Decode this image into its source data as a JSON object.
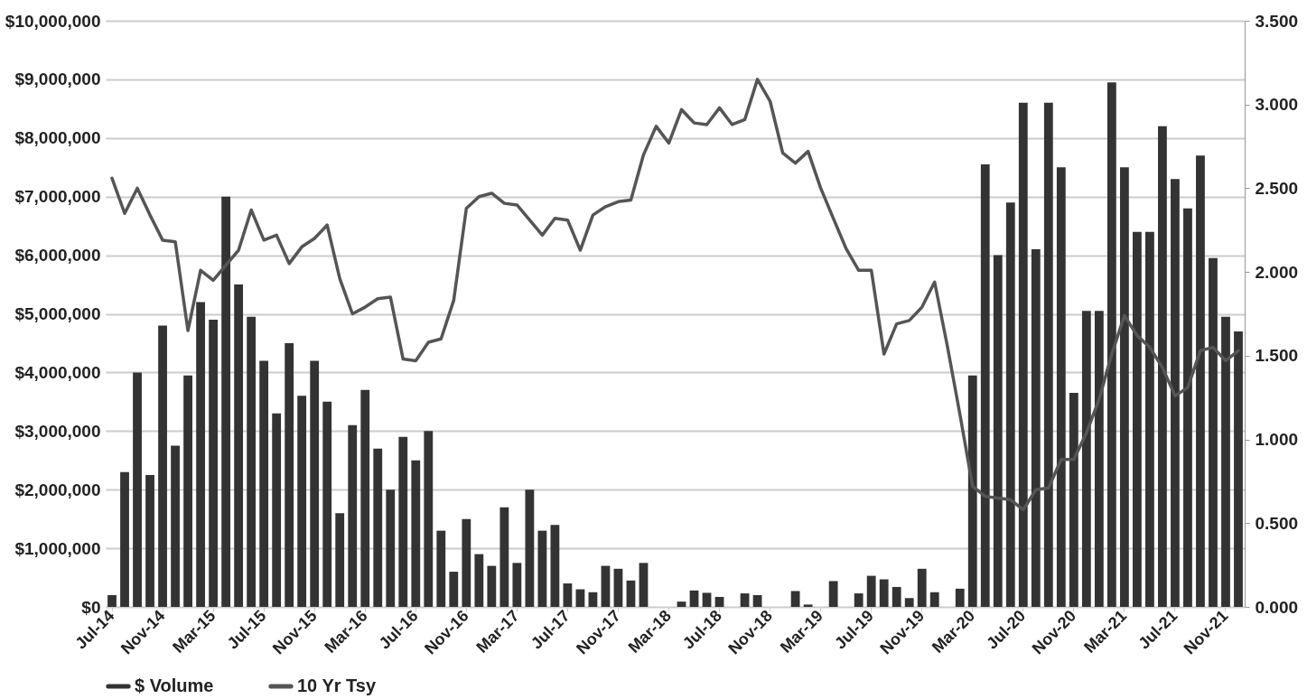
{
  "chart_data": {
    "type": "bar",
    "categories": [
      "Jul-14",
      null,
      null,
      null,
      "Nov-14",
      null,
      null,
      null,
      "Mar-15",
      null,
      null,
      null,
      "Jul-15",
      null,
      null,
      null,
      "Nov-15",
      null,
      null,
      null,
      "Mar-16",
      null,
      null,
      null,
      "Jul-16",
      null,
      null,
      null,
      "Nov-16",
      null,
      null,
      null,
      "Mar-17",
      null,
      null,
      null,
      "Jul-17",
      null,
      null,
      null,
      "Nov-17",
      null,
      null,
      null,
      "Mar-18",
      null,
      null,
      null,
      "Jul-18",
      null,
      null,
      null,
      "Nov-18",
      null,
      null,
      null,
      "Mar-19",
      null,
      null,
      null,
      "Jul-19",
      null,
      null,
      null,
      "Nov-19",
      null,
      null,
      null,
      "Mar-20",
      null,
      null,
      null,
      "Jul-20",
      null,
      null,
      null,
      "Nov-20",
      null,
      null,
      null,
      "Mar-21",
      null,
      null,
      null,
      "Jul-21",
      null,
      null,
      null,
      "Nov-21",
      null
    ],
    "series": [
      {
        "name": "$ Volume",
        "color": "#333333",
        "values": [
          200000,
          2300000,
          4000000,
          2250000,
          4800000,
          2750000,
          3950000,
          5200000,
          4900000,
          7000000,
          5500000,
          4950000,
          4200000,
          3300000,
          4500000,
          3600000,
          4200000,
          3500000,
          1600000,
          3100000,
          3700000,
          2700000,
          2000000,
          2900000,
          2500000,
          3000000,
          1300000,
          600000,
          1500000,
          900000,
          700000,
          1700000,
          750000,
          2000000,
          1300000,
          1400000,
          400000,
          300000,
          250000,
          700000,
          650000,
          450000,
          750000,
          0,
          0,
          90000,
          280000,
          240000,
          170000,
          0,
          230000,
          200000,
          0,
          0,
          270000,
          40000,
          0,
          440000,
          0,
          230000,
          530000,
          470000,
          340000,
          150000,
          650000,
          250000,
          0,
          310000,
          3950000,
          7550000,
          6000000,
          6900000,
          8600000,
          6100000,
          8600000,
          7500000,
          3650000,
          5050000,
          5050000,
          8950000,
          7500000,
          6400000,
          6400000,
          8200000,
          7300000,
          6800000,
          7700000,
          5950000,
          4950000,
          4700000
        ]
      },
      {
        "name": "10 Yr Tsy",
        "type": "line",
        "axis": "y2",
        "color": "#555555",
        "values": [
          2.56,
          2.35,
          2.5,
          2.34,
          2.19,
          2.18,
          1.65,
          2.01,
          1.95,
          2.04,
          2.13,
          2.37,
          2.19,
          2.22,
          2.05,
          2.15,
          2.2,
          2.28,
          1.96,
          1.75,
          1.79,
          1.84,
          1.85,
          1.48,
          1.47,
          1.58,
          1.6,
          1.83,
          2.38,
          2.45,
          2.47,
          2.41,
          2.4,
          2.31,
          2.22,
          2.32,
          2.31,
          2.13,
          2.34,
          2.39,
          2.42,
          2.43,
          2.7,
          2.87,
          2.77,
          2.97,
          2.89,
          2.88,
          2.98,
          2.88,
          2.91,
          3.15,
          3.02,
          2.71,
          2.65,
          2.72,
          2.5,
          2.32,
          2.14,
          2.01,
          2.01,
          1.51,
          1.69,
          1.71,
          1.79,
          1.94,
          1.56,
          1.15,
          0.72,
          0.66,
          0.65,
          0.64,
          0.58,
          0.7,
          0.71,
          0.88,
          0.88,
          1.04,
          1.24,
          1.51,
          1.74,
          1.62,
          1.55,
          1.43,
          1.26,
          1.31,
          1.53,
          1.55,
          1.47,
          1.53
        ]
      }
    ],
    "ylim": [
      0,
      10000000
    ],
    "yticks": [
      {
        "value": 0,
        "label": "$0"
      },
      {
        "value": 1000000,
        "label": "$1,000,000"
      },
      {
        "value": 2000000,
        "label": "$2,000,000"
      },
      {
        "value": 3000000,
        "label": "$3,000,000"
      },
      {
        "value": 4000000,
        "label": "$4,000,000"
      },
      {
        "value": 5000000,
        "label": "$5,000,000"
      },
      {
        "value": 6000000,
        "label": "$6,000,000"
      },
      {
        "value": 7000000,
        "label": "$7,000,000"
      },
      {
        "value": 8000000,
        "label": "$8,000,000"
      },
      {
        "value": 9000000,
        "label": "$9,000,000"
      },
      {
        "value": 10000000,
        "label": "$10,000,000"
      }
    ],
    "y2lim": [
      0,
      3.5
    ],
    "y2ticks": [
      {
        "value": 0,
        "label": "0.000"
      },
      {
        "value": 0.5,
        "label": "0.500"
      },
      {
        "value": 1,
        "label": "1.000"
      },
      {
        "value": 1.5,
        "label": "1.500"
      },
      {
        "value": 2,
        "label": "2.000"
      },
      {
        "value": 2.5,
        "label": "2.500"
      },
      {
        "value": 3,
        "label": "3.000"
      },
      {
        "value": 3.5,
        "label": "3.500"
      }
    ],
    "grid": "y",
    "legend": "bottom"
  }
}
